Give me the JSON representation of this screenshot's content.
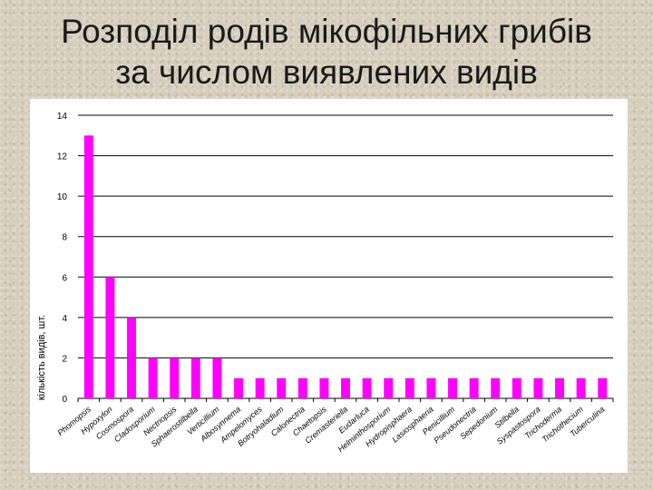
{
  "slide": {
    "title_line1": "Розподіл родів мікофільних грибів",
    "title_line2": "за числом виявлених видів"
  },
  "colors": {
    "bar": "#ff00ff",
    "grid": "#000000",
    "text": "#000000"
  },
  "chart_data": {
    "type": "bar",
    "title": "",
    "xlabel": "",
    "ylabel": "кількість видів, шт.",
    "ylim": [
      0,
      14
    ],
    "yticks": [
      0,
      2,
      4,
      6,
      8,
      10,
      12,
      14
    ],
    "grid": true,
    "legend": "none",
    "categories": [
      "Phomopsis",
      "Hypoxylon",
      "Cosmospora",
      "Cladosporium",
      "Nectriopsis",
      "Sphaerostilbella",
      "Verticillium",
      "Albosynnema",
      "Ampelomyces",
      "Botryohaladium",
      "Calonectria",
      "Chaetopsis",
      "Cremasteriella",
      "Eudarluca",
      "Helminthosporium",
      "Hydropisphaera",
      "Lasiosphaeria",
      "Penicillium",
      "Pseudonectria",
      "Sepedonium",
      "Stilbella",
      "Syspastospora",
      "Trichoderma",
      "Trichothecium",
      "Tuberculina"
    ],
    "values": [
      13,
      6,
      4,
      2,
      2,
      2,
      2,
      1,
      1,
      1,
      1,
      1,
      1,
      1,
      1,
      1,
      1,
      1,
      1,
      1,
      1,
      1,
      1,
      1,
      1
    ]
  }
}
